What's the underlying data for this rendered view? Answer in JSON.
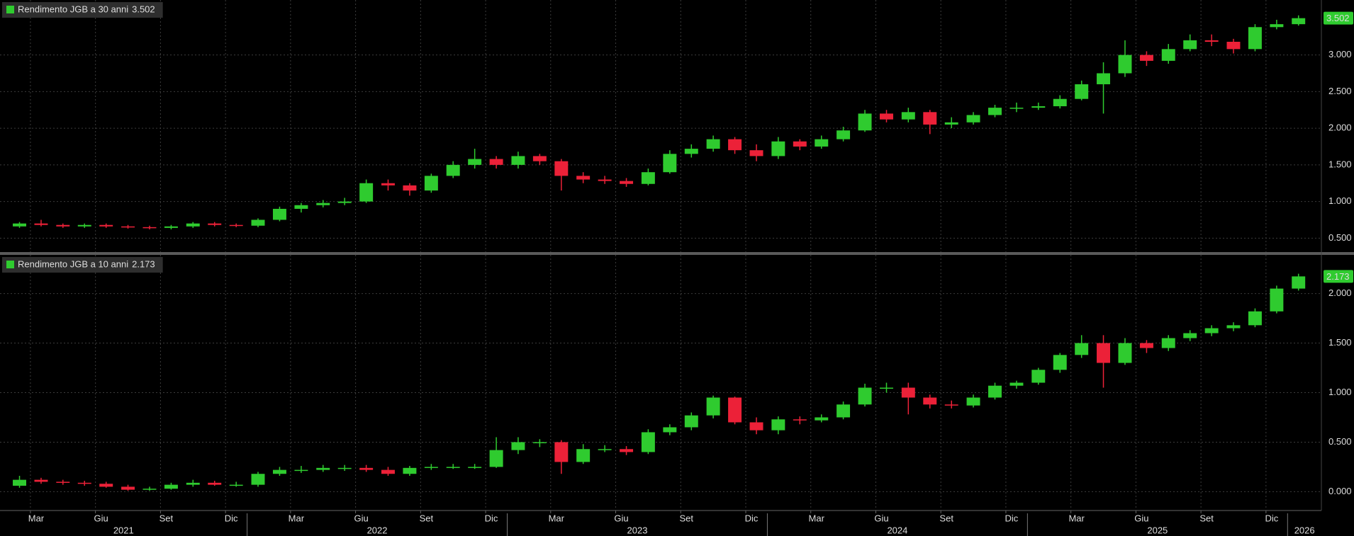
{
  "chart_data": [
    {
      "type": "candlestick",
      "name": "Rendimento JGB a 30 anni",
      "last": 3.502,
      "up_color": "#2fcb2f",
      "down_color": "#ec2138",
      "grid": true,
      "xlim": [
        2021.05,
        2026.13
      ],
      "ylim": [
        0.31,
        3.75
      ],
      "yticks": [
        {
          "value": 0.5,
          "label": "0.500"
        },
        {
          "value": 1,
          "label": "1.000"
        },
        {
          "value": 1.5,
          "label": "1.500"
        },
        {
          "value": 2,
          "label": "2.000"
        },
        {
          "value": 2.5,
          "label": "2.500"
        },
        {
          "value": 3,
          "label": "3.000"
        }
      ],
      "x": [
        2021.125,
        2021.208,
        2021.292,
        2021.375,
        2021.458,
        2021.542,
        2021.625,
        2021.708,
        2021.792,
        2021.875,
        2021.958,
        2022.042,
        2022.125,
        2022.208,
        2022.292,
        2022.375,
        2022.458,
        2022.542,
        2022.625,
        2022.708,
        2022.792,
        2022.875,
        2022.958,
        2023.042,
        2023.125,
        2023.208,
        2023.292,
        2023.375,
        2023.458,
        2023.542,
        2023.625,
        2023.708,
        2023.792,
        2023.875,
        2023.958,
        2024.042,
        2024.125,
        2024.208,
        2024.292,
        2024.375,
        2024.458,
        2024.542,
        2024.625,
        2024.708,
        2024.792,
        2024.875,
        2024.958,
        2025.042,
        2025.125,
        2025.208,
        2025.292,
        2025.375,
        2025.458,
        2025.542,
        2025.625,
        2025.708,
        2025.792,
        2025.875,
        2025.958,
        2026.042
      ],
      "open": [
        0.66,
        0.7,
        0.68,
        0.66,
        0.68,
        0.66,
        0.65,
        0.64,
        0.66,
        0.7,
        0.68,
        0.67,
        0.75,
        0.9,
        0.95,
        0.98,
        1.0,
        1.25,
        1.22,
        1.15,
        1.35,
        1.5,
        1.58,
        1.5,
        1.62,
        1.55,
        1.35,
        1.3,
        1.28,
        1.24,
        1.4,
        1.65,
        1.72,
        1.85,
        1.7,
        1.62,
        1.82,
        1.75,
        1.85,
        1.97,
        2.2,
        2.12,
        2.22,
        2.05,
        2.08,
        2.18,
        2.28,
        2.28,
        2.3,
        2.4,
        2.6,
        2.75,
        3.0,
        2.92,
        3.08,
        3.2,
        3.18,
        3.08,
        3.38,
        3.42
      ],
      "high": [
        0.72,
        0.75,
        0.7,
        0.7,
        0.7,
        0.68,
        0.67,
        0.68,
        0.72,
        0.72,
        0.7,
        0.77,
        0.93,
        0.98,
        1.02,
        1.05,
        1.3,
        1.3,
        1.25,
        1.38,
        1.55,
        1.72,
        1.62,
        1.68,
        1.65,
        1.58,
        1.4,
        1.35,
        1.32,
        1.45,
        1.7,
        1.78,
        1.9,
        1.88,
        1.78,
        1.88,
        1.85,
        1.9,
        2.02,
        2.25,
        2.25,
        2.28,
        2.25,
        2.15,
        2.22,
        2.32,
        2.35,
        2.35,
        2.45,
        2.65,
        2.9,
        3.2,
        3.05,
        3.15,
        3.28,
        3.28,
        3.22,
        3.42,
        3.48,
        3.54
      ],
      "low": [
        0.64,
        0.66,
        0.64,
        0.64,
        0.64,
        0.63,
        0.62,
        0.62,
        0.64,
        0.66,
        0.65,
        0.65,
        0.73,
        0.85,
        0.92,
        0.95,
        0.98,
        1.15,
        1.08,
        1.12,
        1.32,
        1.45,
        1.45,
        1.45,
        1.5,
        1.15,
        1.25,
        1.24,
        1.2,
        1.22,
        1.38,
        1.6,
        1.68,
        1.65,
        1.55,
        1.58,
        1.7,
        1.72,
        1.82,
        1.95,
        2.08,
        2.08,
        1.92,
        2.0,
        2.05,
        2.15,
        2.22,
        2.25,
        2.27,
        2.38,
        2.2,
        2.7,
        2.85,
        2.88,
        3.05,
        3.12,
        3.02,
        3.05,
        3.35,
        3.4
      ],
      "close": [
        0.7,
        0.68,
        0.66,
        0.68,
        0.66,
        0.65,
        0.64,
        0.66,
        0.7,
        0.68,
        0.67,
        0.75,
        0.9,
        0.95,
        0.98,
        1.0,
        1.25,
        1.22,
        1.15,
        1.35,
        1.5,
        1.58,
        1.5,
        1.62,
        1.55,
        1.35,
        1.3,
        1.28,
        1.24,
        1.4,
        1.65,
        1.72,
        1.85,
        1.7,
        1.62,
        1.82,
        1.75,
        1.85,
        1.97,
        2.2,
        2.12,
        2.22,
        2.05,
        2.08,
        2.18,
        2.28,
        2.28,
        2.3,
        2.4,
        2.6,
        2.75,
        3.0,
        2.92,
        3.08,
        3.2,
        3.18,
        3.08,
        3.38,
        3.42,
        3.502
      ]
    },
    {
      "type": "candlestick",
      "name": "Rendimento JGB a 10 anni",
      "last": 2.173,
      "up_color": "#2fcb2f",
      "down_color": "#ec2138",
      "grid": true,
      "xlim": [
        2021.05,
        2026.13
      ],
      "ylim": [
        -0.19,
        2.39
      ],
      "yticks": [
        {
          "value": 0,
          "label": "0.000"
        },
        {
          "value": 0.5,
          "label": "0.500"
        },
        {
          "value": 1,
          "label": "1.000"
        },
        {
          "value": 1.5,
          "label": "1.500"
        },
        {
          "value": 2,
          "label": "2.000"
        }
      ],
      "xticks": [
        {
          "value": 2021.167,
          "label": "Mar"
        },
        {
          "value": 2021.417,
          "label": "Giu"
        },
        {
          "value": 2021.667,
          "label": "Set"
        },
        {
          "value": 2021.917,
          "label": "Dic"
        },
        {
          "value": 2022.167,
          "label": "Mar"
        },
        {
          "value": 2022.417,
          "label": "Giu"
        },
        {
          "value": 2022.667,
          "label": "Set"
        },
        {
          "value": 2022.917,
          "label": "Dic"
        },
        {
          "value": 2023.167,
          "label": "Mar"
        },
        {
          "value": 2023.417,
          "label": "Giu"
        },
        {
          "value": 2023.667,
          "label": "Set"
        },
        {
          "value": 2023.917,
          "label": "Dic"
        },
        {
          "value": 2024.167,
          "label": "Mar"
        },
        {
          "value": 2024.417,
          "label": "Giu"
        },
        {
          "value": 2024.667,
          "label": "Set"
        },
        {
          "value": 2024.917,
          "label": "Dic"
        },
        {
          "value": 2025.167,
          "label": "Mar"
        },
        {
          "value": 2025.417,
          "label": "Giu"
        },
        {
          "value": 2025.667,
          "label": "Set"
        },
        {
          "value": 2025.917,
          "label": "Dic"
        }
      ],
      "year_ticks": [
        {
          "value": 2021,
          "label": "2021"
        },
        {
          "value": 2022,
          "label": "2022"
        },
        {
          "value": 2023,
          "label": "2023"
        },
        {
          "value": 2024,
          "label": "2024"
        },
        {
          "value": 2025,
          "label": "2025"
        },
        {
          "value": 2026,
          "label": "2026"
        }
      ],
      "x": [
        2021.125,
        2021.208,
        2021.292,
        2021.375,
        2021.458,
        2021.542,
        2021.625,
        2021.708,
        2021.792,
        2021.875,
        2021.958,
        2022.042,
        2022.125,
        2022.208,
        2022.292,
        2022.375,
        2022.458,
        2022.542,
        2022.625,
        2022.708,
        2022.792,
        2022.875,
        2022.958,
        2023.042,
        2023.125,
        2023.208,
        2023.292,
        2023.375,
        2023.458,
        2023.542,
        2023.625,
        2023.708,
        2023.792,
        2023.875,
        2023.958,
        2024.042,
        2024.125,
        2024.208,
        2024.292,
        2024.375,
        2024.458,
        2024.542,
        2024.625,
        2024.708,
        2024.792,
        2024.875,
        2024.958,
        2025.042,
        2025.125,
        2025.208,
        2025.292,
        2025.375,
        2025.458,
        2025.542,
        2025.625,
        2025.708,
        2025.792,
        2025.875,
        2025.958,
        2026.042
      ],
      "open": [
        0.06,
        0.12,
        0.1,
        0.09,
        0.08,
        0.05,
        0.02,
        0.03,
        0.07,
        0.09,
        0.07,
        0.07,
        0.18,
        0.22,
        0.22,
        0.24,
        0.24,
        0.22,
        0.18,
        0.24,
        0.25,
        0.25,
        0.25,
        0.42,
        0.5,
        0.5,
        0.3,
        0.43,
        0.43,
        0.4,
        0.6,
        0.65,
        0.77,
        0.95,
        0.7,
        0.62,
        0.73,
        0.72,
        0.75,
        0.88,
        1.05,
        1.05,
        0.95,
        0.88,
        0.87,
        0.95,
        1.07,
        1.1,
        1.23,
        1.38,
        1.5,
        1.3,
        1.5,
        1.45,
        1.55,
        1.6,
        1.65,
        1.68,
        1.82,
        2.05
      ],
      "high": [
        0.16,
        0.14,
        0.12,
        0.11,
        0.1,
        0.07,
        0.05,
        0.09,
        0.12,
        0.11,
        0.1,
        0.2,
        0.25,
        0.26,
        0.27,
        0.27,
        0.27,
        0.25,
        0.26,
        0.28,
        0.28,
        0.28,
        0.55,
        0.55,
        0.53,
        0.52,
        0.48,
        0.47,
        0.46,
        0.63,
        0.68,
        0.8,
        0.97,
        0.96,
        0.75,
        0.76,
        0.76,
        0.78,
        0.91,
        1.09,
        1.1,
        1.1,
        0.98,
        0.92,
        0.98,
        1.1,
        1.12,
        1.25,
        1.4,
        1.58,
        1.58,
        1.55,
        1.53,
        1.58,
        1.63,
        1.68,
        1.71,
        1.85,
        2.08,
        2.2
      ],
      "low": [
        0.04,
        0.08,
        0.07,
        0.06,
        0.04,
        0.01,
        0.01,
        0.02,
        0.05,
        0.06,
        0.05,
        0.05,
        0.16,
        0.19,
        0.2,
        0.21,
        0.2,
        0.16,
        0.16,
        0.22,
        0.23,
        0.23,
        0.24,
        0.38,
        0.45,
        0.18,
        0.28,
        0.4,
        0.37,
        0.38,
        0.57,
        0.62,
        0.74,
        0.68,
        0.58,
        0.58,
        0.68,
        0.7,
        0.73,
        0.86,
        1.0,
        0.78,
        0.84,
        0.84,
        0.85,
        0.93,
        1.04,
        1.08,
        1.2,
        1.35,
        1.05,
        1.28,
        1.4,
        1.42,
        1.52,
        1.57,
        1.62,
        1.66,
        1.8,
        2.03
      ],
      "close": [
        0.12,
        0.1,
        0.09,
        0.08,
        0.05,
        0.02,
        0.03,
        0.07,
        0.09,
        0.07,
        0.07,
        0.18,
        0.22,
        0.22,
        0.24,
        0.24,
        0.22,
        0.18,
        0.24,
        0.25,
        0.25,
        0.25,
        0.42,
        0.5,
        0.5,
        0.3,
        0.43,
        0.43,
        0.4,
        0.6,
        0.65,
        0.77,
        0.95,
        0.7,
        0.62,
        0.73,
        0.72,
        0.75,
        0.88,
        1.05,
        1.05,
        0.95,
        0.88,
        0.87,
        0.95,
        1.07,
        1.1,
        1.23,
        1.38,
        1.5,
        1.3,
        1.5,
        1.45,
        1.55,
        1.6,
        1.65,
        1.68,
        1.82,
        2.05,
        2.173
      ]
    }
  ]
}
